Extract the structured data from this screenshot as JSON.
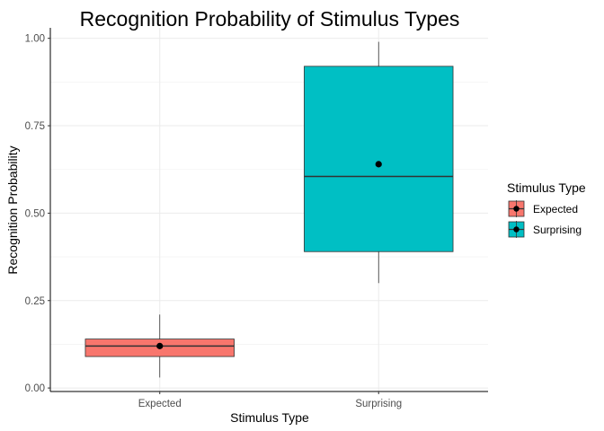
{
  "chart_data": {
    "type": "boxplot",
    "title": "Recognition Probability of Stimulus Types",
    "xlabel": "Stimulus Type",
    "ylabel": "Recognition Probability",
    "ylim": [
      -0.01,
      1.03
    ],
    "yticks": [
      "0.00",
      "0.25",
      "0.50",
      "0.75",
      "1.00"
    ],
    "grid": true,
    "legend": {
      "title": "Stimulus Type",
      "position": "right",
      "entries": [
        "Expected",
        "Surprising"
      ]
    },
    "categories": [
      "Expected",
      "Surprising"
    ],
    "series": [
      {
        "name": "Expected",
        "color": "#F8766D",
        "whisker_low": 0.03,
        "q1": 0.09,
        "median": 0.12,
        "q3": 0.14,
        "whisker_high": 0.21,
        "mean": 0.12
      },
      {
        "name": "Surprising",
        "color": "#00BFC4",
        "whisker_low": 0.3,
        "q1": 0.39,
        "median": 0.605,
        "q3": 0.92,
        "whisker_high": 0.99,
        "mean": 0.64
      }
    ]
  }
}
